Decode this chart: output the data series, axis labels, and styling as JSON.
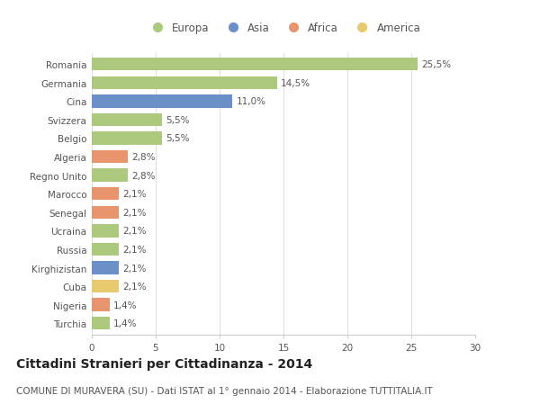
{
  "categories": [
    "Romania",
    "Germania",
    "Cina",
    "Svizzera",
    "Belgio",
    "Algeria",
    "Regno Unito",
    "Marocco",
    "Senegal",
    "Ucraina",
    "Russia",
    "Kirghizistan",
    "Cuba",
    "Nigeria",
    "Turchia"
  ],
  "values": [
    25.5,
    14.5,
    11.0,
    5.5,
    5.5,
    2.8,
    2.8,
    2.1,
    2.1,
    2.1,
    2.1,
    2.1,
    2.1,
    1.4,
    1.4
  ],
  "labels": [
    "25,5%",
    "14,5%",
    "11,0%",
    "5,5%",
    "5,5%",
    "2,8%",
    "2,8%",
    "2,1%",
    "2,1%",
    "2,1%",
    "2,1%",
    "2,1%",
    "2,1%",
    "1,4%",
    "1,4%"
  ],
  "colors": [
    "#adc97e",
    "#adc97e",
    "#6b8fc9",
    "#adc97e",
    "#adc97e",
    "#e8956d",
    "#adc97e",
    "#e8956d",
    "#e8956d",
    "#adc97e",
    "#adc97e",
    "#6b8fc9",
    "#e8c96d",
    "#e8956d",
    "#adc97e"
  ],
  "legend_labels": [
    "Europa",
    "Asia",
    "Africa",
    "America"
  ],
  "legend_colors": [
    "#adc97e",
    "#6b8fc9",
    "#e8956d",
    "#e8c96d"
  ],
  "xlim": [
    0,
    30
  ],
  "xticks": [
    0,
    5,
    10,
    15,
    20,
    25,
    30
  ],
  "title": "Cittadini Stranieri per Cittadinanza - 2014",
  "subtitle": "COMUNE DI MURAVERA (SU) - Dati ISTAT al 1° gennaio 2014 - Elaborazione TUTTITALIA.IT",
  "background_color": "#ffffff",
  "bar_height": 0.7,
  "label_fontsize": 7.5,
  "tick_fontsize": 7.5,
  "title_fontsize": 10,
  "subtitle_fontsize": 7.5,
  "label_color": "#555555",
  "text_color": "#555555",
  "grid_color": "#dddddd",
  "spine_color": "#cccccc"
}
